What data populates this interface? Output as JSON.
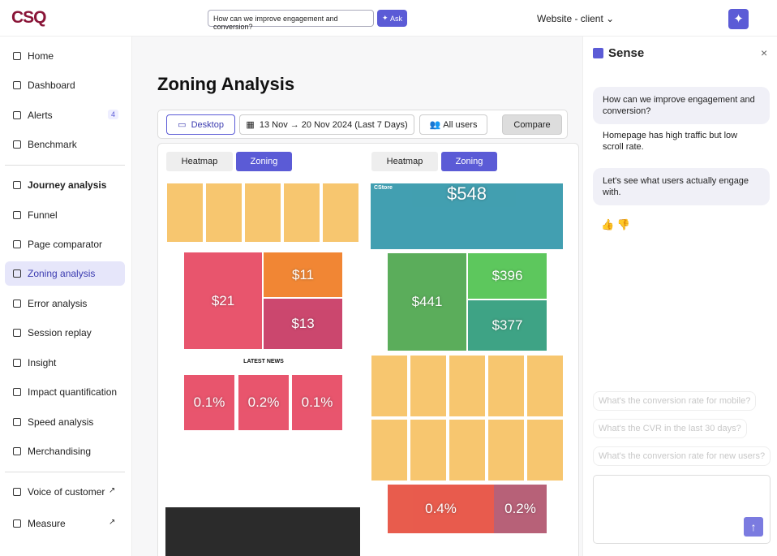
{
  "header": {
    "logo": "CSQ",
    "search": "How can we improve engagement and conversion?",
    "ask": "Ask",
    "site": "Website - client"
  },
  "sidebar": {
    "items": [
      {
        "label": "Home"
      },
      {
        "label": "Dashboard"
      },
      {
        "label": "Alerts",
        "badge": "4"
      },
      {
        "label": "Benchmark"
      },
      {
        "label": "Journey analysis"
      },
      {
        "label": "Funnel"
      },
      {
        "label": "Page comparator"
      },
      {
        "label": "Zoning analysis"
      },
      {
        "label": "Error analysis"
      },
      {
        "label": "Session replay"
      },
      {
        "label": "Insight"
      },
      {
        "label": "Impact quantification"
      },
      {
        "label": "Speed analysis"
      },
      {
        "label": "Merchandising"
      },
      {
        "label": "Voice of customer"
      },
      {
        "label": "Measure"
      }
    ]
  },
  "main": {
    "title": "Zoning Analysis",
    "toolbar": {
      "device": "Desktop",
      "dates": "13 Nov → 20 Nov 2024 (Last 7 Days)",
      "segment": "All users",
      "compare": "Compare"
    },
    "panels": [
      {
        "tabs": [
          "Heatmap",
          "Zoning"
        ],
        "zones": [
          "$21",
          "$11",
          "$13",
          "0.1%",
          "0.2%",
          "0.1%"
        ],
        "heading": "LATEST NEWS"
      },
      {
        "tabs": [
          "Heatmap",
          "Zoning"
        ],
        "zones": [
          "$548",
          "$441",
          "$396",
          "$377",
          "0.4%",
          "0.2%"
        ],
        "heading": "CStore"
      }
    ]
  },
  "sense": {
    "title": "Sense",
    "messages": [
      "How can we improve engagement and conversion?",
      "Homepage has high traffic but low scroll rate.",
      "Let's see what users actually engage with."
    ],
    "suggestions": [
      "What's the conversion rate for mobile?",
      "What's the CVR in the last 30 days?",
      "What's the conversion rate for new users?"
    ]
  }
}
